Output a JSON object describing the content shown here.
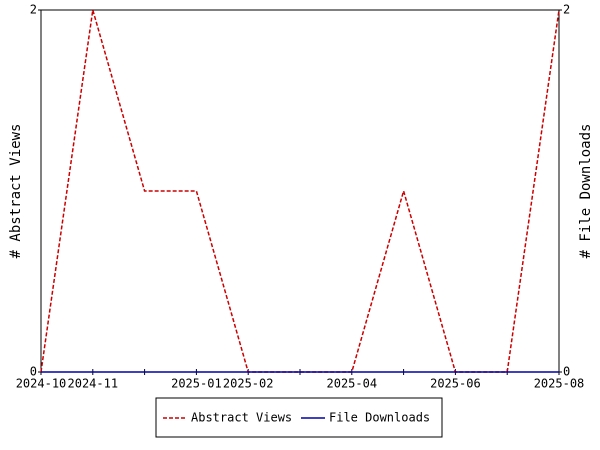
{
  "chart_data": {
    "type": "line",
    "categories": [
      "2024-10",
      "2024-11",
      null,
      "2025-01",
      "2025-02",
      null,
      "2025-04",
      null,
      "2025-06",
      null,
      "2025-08"
    ],
    "y_label": "# Abstract Views",
    "y2_label": "# File Downloads",
    "ylim": [
      0,
      2
    ],
    "yticks": [
      0,
      2
    ],
    "y2lim": [
      0,
      2
    ],
    "y2ticks": [
      0,
      2
    ],
    "series": [
      {
        "name": "Abstract Views",
        "color": "#cc0000",
        "dashed": true,
        "values": [
          0,
          2,
          1,
          1,
          0,
          0,
          0,
          1,
          0,
          0,
          2
        ]
      },
      {
        "name": "File Downloads",
        "color": "#0000aa",
        "dashed": false,
        "axis": "y2",
        "values": [
          0,
          0,
          0,
          0,
          0,
          0,
          0,
          0,
          0,
          0,
          0
        ]
      }
    ]
  }
}
